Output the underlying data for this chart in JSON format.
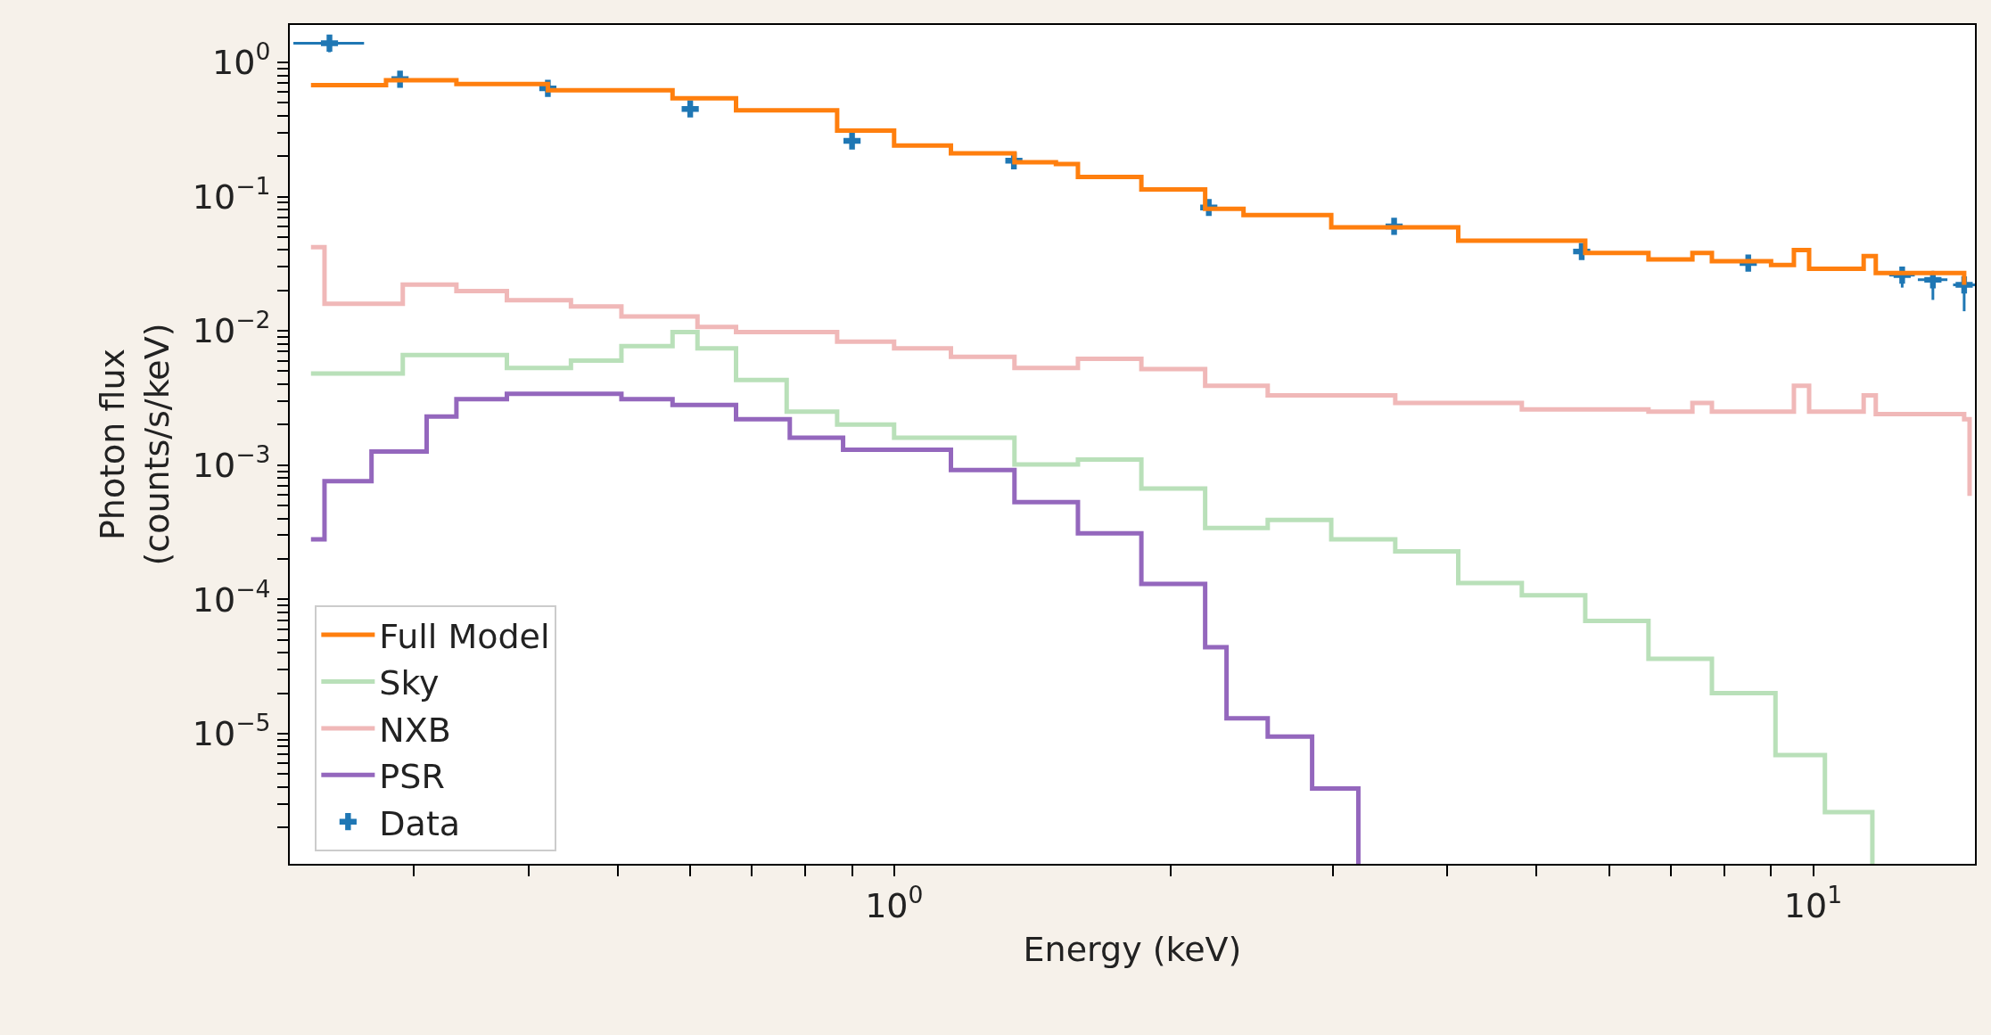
{
  "chart_data": {
    "type": "step",
    "xlabel": "Energy (keV)",
    "ylabel": "Photon flux\n(counts/s/keV)",
    "log": "xy",
    "legend": "bottom left",
    "xlim": [
      0.22,
      15
    ],
    "ylim": [
      1.07e-06,
      1.9
    ],
    "xticks": [
      {
        "value": 0.3,
        "label": null
      },
      {
        "value": 0.4,
        "label": null
      },
      {
        "value": 0.5,
        "label": null
      },
      {
        "value": 0.6,
        "label": null
      },
      {
        "value": 0.7,
        "label": null
      },
      {
        "value": 0.8,
        "label": null
      },
      {
        "value": 0.9,
        "label": null
      },
      {
        "value": 1,
        "label": "10$^{0}$"
      },
      {
        "value": 2,
        "label": null
      },
      {
        "value": 3,
        "label": null
      },
      {
        "value": 4,
        "label": null
      },
      {
        "value": 5,
        "label": null
      },
      {
        "value": 6,
        "label": null
      },
      {
        "value": 7,
        "label": null
      },
      {
        "value": 8,
        "label": null
      },
      {
        "value": 9,
        "label": null
      },
      {
        "value": 10,
        "label": "10$^{1}$"
      }
    ],
    "yticks": [
      {
        "value": 2e-06,
        "label": null
      },
      {
        "value": 3e-06,
        "label": null
      },
      {
        "value": 4e-06,
        "label": null
      },
      {
        "value": 5e-06,
        "label": null
      },
      {
        "value": 6e-06,
        "label": null
      },
      {
        "value": 7e-06,
        "label": null
      },
      {
        "value": 8e-06,
        "label": null
      },
      {
        "value": 9e-06,
        "label": null
      },
      {
        "value": 1e-05,
        "label": "10$^{−5}$"
      },
      {
        "value": 2e-05,
        "label": null
      },
      {
        "value": 3e-05,
        "label": null
      },
      {
        "value": 4e-05,
        "label": null
      },
      {
        "value": 5e-05,
        "label": null
      },
      {
        "value": 6e-05,
        "label": null
      },
      {
        "value": 7e-05,
        "label": null
      },
      {
        "value": 8e-05,
        "label": null
      },
      {
        "value": 9e-05,
        "label": null
      },
      {
        "value": 0.0001,
        "label": "10$^{−4}$"
      },
      {
        "value": 0.0002,
        "label": null
      },
      {
        "value": 0.0003,
        "label": null
      },
      {
        "value": 0.0004,
        "label": null
      },
      {
        "value": 0.0005,
        "label": null
      },
      {
        "value": 0.0006,
        "label": null
      },
      {
        "value": 0.0007,
        "label": null
      },
      {
        "value": 0.0008,
        "label": null
      },
      {
        "value": 0.0009,
        "label": null
      },
      {
        "value": 0.001,
        "label": "10$^{−3}$"
      },
      {
        "value": 0.002,
        "label": null
      },
      {
        "value": 0.003,
        "label": null
      },
      {
        "value": 0.004,
        "label": null
      },
      {
        "value": 0.005,
        "label": null
      },
      {
        "value": 0.006,
        "label": null
      },
      {
        "value": 0.007,
        "label": null
      },
      {
        "value": 0.008,
        "label": null
      },
      {
        "value": 0.009,
        "label": null
      },
      {
        "value": 0.01,
        "label": "10$^{−2}$"
      },
      {
        "value": 0.02,
        "label": null
      },
      {
        "value": 0.03,
        "label": null
      },
      {
        "value": 0.04,
        "label": null
      },
      {
        "value": 0.05,
        "label": null
      },
      {
        "value": 0.06,
        "label": null
      },
      {
        "value": 0.07,
        "label": null
      },
      {
        "value": 0.08,
        "label": null
      },
      {
        "value": 0.09,
        "label": null
      },
      {
        "value": 0.1,
        "label": "10$^{−1}$"
      },
      {
        "value": 0.2,
        "label": null
      },
      {
        "value": 0.3,
        "label": null
      },
      {
        "value": 0.4,
        "label": null
      },
      {
        "value": 0.5,
        "label": null
      },
      {
        "value": 0.6,
        "label": null
      },
      {
        "value": 0.7,
        "label": null
      },
      {
        "value": 0.8,
        "label": null
      },
      {
        "value": 0.9,
        "label": null
      },
      {
        "value": 1,
        "label": "10$^{0}$"
      }
    ],
    "series": [
      {
        "name": "Data",
        "type": "scatter",
        "marker": "cross",
        "color": "#1f77b4",
        "x": [
          0.243,
          0.29,
          0.42,
          0.6,
          0.9,
          1.35,
          2.2,
          3.5,
          5.6,
          8.5,
          12.5,
          13.5,
          14.6
        ],
        "values": [
          1.39,
          0.75,
          0.64,
          0.45,
          0.26,
          0.185,
          0.083,
          0.06,
          0.039,
          0.032,
          0.026,
          0.024,
          0.022
        ],
        "xerrors": [
          [
            0.222,
            0.265
          ],
          null,
          null,
          null,
          null,
          null,
          null,
          null,
          null,
          null,
          0.4,
          0.5,
          0.4
        ],
        "errors": [
          0.2,
          null,
          null,
          null,
          null,
          null,
          null,
          null,
          null,
          null,
          [
            0.021,
            0.029
          ],
          [
            0.017,
            0.028
          ],
          [
            0.014,
            0.026
          ]
        ]
      },
      {
        "name": "Full Model",
        "line_style": "solid",
        "color": "#ff7f0e",
        "x": [
          0.232,
          0.28,
          0.334,
          0.42,
          0.505,
          0.574,
          0.673,
          0.867,
          1.0,
          1.153,
          1.352,
          1.5,
          1.585,
          1.858,
          2.18,
          2.4,
          2.99,
          4.11,
          5.65,
          6.62,
          7.39,
          7.76,
          9.0,
          9.53,
          9.9,
          11.35,
          11.7,
          14.6
        ],
        "values": [
          0.676,
          0.737,
          0.69,
          0.62,
          0.62,
          0.54,
          0.44,
          0.31,
          0.24,
          0.21,
          0.18,
          0.175,
          0.14,
          0.113,
          0.081,
          0.073,
          0.059,
          0.047,
          0.038,
          0.034,
          0.038,
          0.033,
          0.031,
          0.04,
          0.029,
          0.036,
          0.027,
          0.022
        ]
      },
      {
        "name": "Sky",
        "line_style": "solid",
        "color": "#b9e0b9",
        "x": [
          0.232,
          0.292,
          0.379,
          0.445,
          0.505,
          0.574,
          0.611,
          0.673,
          0.764,
          0.867,
          1.0,
          1.352,
          1.585,
          1.858,
          2.18,
          2.55,
          2.99,
          3.51,
          4.11,
          4.82,
          5.65,
          6.62,
          7.76,
          9.1,
          10.3,
          11.6
        ],
        "values": [
          0.0048,
          0.0066,
          0.0053,
          0.006,
          0.0077,
          0.0098,
          0.0074,
          0.0043,
          0.0025,
          0.002,
          0.0016,
          0.00101,
          0.0011,
          0.00067,
          0.00034,
          0.00039,
          0.00028,
          0.000228,
          0.000132,
          0.000107,
          6.9e-05,
          3.6e-05,
          2e-05,
          6.9e-06,
          2.6e-06,
          1.07e-06
        ]
      },
      {
        "name": "NXB",
        "line_style": "solid",
        "color": "#f0b8b8",
        "x": [
          0.232,
          0.24,
          0.255,
          0.292,
          0.334,
          0.379,
          0.445,
          0.505,
          0.611,
          0.673,
          0.867,
          1.0,
          1.153,
          1.352,
          1.585,
          1.858,
          2.18,
          2.55,
          3.51,
          4.82,
          6.62,
          7.39,
          7.76,
          9.53,
          9.9,
          11.35,
          11.7,
          14.6,
          14.8
        ],
        "values": [
          0.042,
          0.0159,
          0.0159,
          0.0221,
          0.0198,
          0.0169,
          0.0152,
          0.0128,
          0.0107,
          0.0098,
          0.0083,
          0.0074,
          0.0064,
          0.0053,
          0.0062,
          0.0052,
          0.0039,
          0.0033,
          0.0029,
          0.0026,
          0.0025,
          0.0029,
          0.0025,
          0.0039,
          0.0025,
          0.0033,
          0.0024,
          0.0022,
          0.00059
        ]
      },
      {
        "name": "PSR",
        "line_style": "solid",
        "color": "#9467bd",
        "x": [
          0.232,
          0.24,
          0.27,
          0.31,
          0.334,
          0.379,
          0.445,
          0.505,
          0.574,
          0.673,
          0.77,
          0.88,
          1.0,
          1.153,
          1.352,
          1.585,
          1.858,
          2.18,
          2.3,
          2.55,
          2.85,
          3.2
        ],
        "values": [
          0.00028,
          0.00076,
          0.00126,
          0.0023,
          0.0031,
          0.0034,
          0.0034,
          0.0031,
          0.0028,
          0.0022,
          0.0016,
          0.0013,
          0.0013,
          0.00092,
          0.00053,
          0.00031,
          0.00013,
          4.4e-05,
          1.3e-05,
          9.5e-06,
          3.9e-06,
          1.07e-06
        ]
      }
    ]
  }
}
